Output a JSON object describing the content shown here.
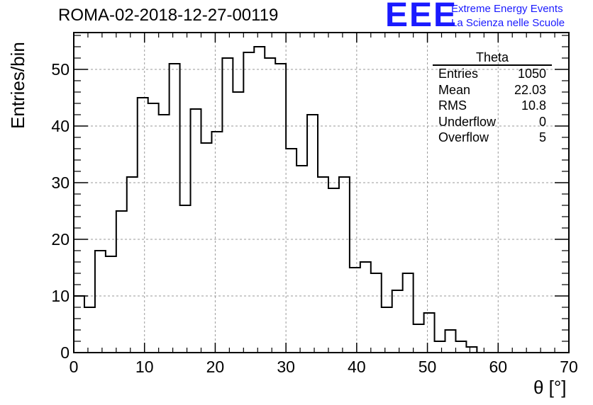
{
  "header": {
    "run_title": "ROMA-02-2018-12-27-00119",
    "logo_mark": "EEE",
    "logo_line1": "Extreme Energy Events",
    "logo_line2": "La Scienza nelle Scuole"
  },
  "stats_box": {
    "title": "Theta",
    "rows": [
      {
        "label": "Entries",
        "value": "1050"
      },
      {
        "label": "Mean",
        "value": "22.03"
      },
      {
        "label": "RMS",
        "value": "10.8"
      },
      {
        "label": "Underflow",
        "value": "0"
      },
      {
        "label": "Overflow",
        "value": "5"
      }
    ]
  },
  "colors": {
    "logo": "#1a1aff",
    "line": "#000000",
    "grid": "#9a9a9a"
  },
  "chart_data": {
    "type": "bar",
    "style": "step-histogram",
    "title": "ROMA-02-2018-12-27-00119",
    "xlabel": "θ [°]",
    "ylabel": "Entries/bin",
    "xlim": [
      0,
      70
    ],
    "ylim": [
      0,
      56.5
    ],
    "bin_width": 1.5,
    "x_ticks": [
      "0",
      "10",
      "20",
      "30",
      "40",
      "50",
      "60",
      "70"
    ],
    "y_ticks": [
      "0",
      "10",
      "20",
      "30",
      "40",
      "50"
    ],
    "grid": true,
    "bins": [
      {
        "x0": 0,
        "x1": 1.5,
        "count": 10
      },
      {
        "x0": 1.5,
        "x1": 3,
        "count": 8
      },
      {
        "x0": 3,
        "x1": 4.5,
        "count": 18
      },
      {
        "x0": 4.5,
        "x1": 6,
        "count": 17
      },
      {
        "x0": 6,
        "x1": 7.5,
        "count": 25
      },
      {
        "x0": 7.5,
        "x1": 9,
        "count": 31
      },
      {
        "x0": 9,
        "x1": 10.5,
        "count": 45
      },
      {
        "x0": 10.5,
        "x1": 12,
        "count": 44
      },
      {
        "x0": 12,
        "x1": 13.5,
        "count": 42
      },
      {
        "x0": 13.5,
        "x1": 15,
        "count": 51
      },
      {
        "x0": 15,
        "x1": 16.5,
        "count": 26
      },
      {
        "x0": 16.5,
        "x1": 18,
        "count": 43
      },
      {
        "x0": 18,
        "x1": 19.5,
        "count": 37
      },
      {
        "x0": 19.5,
        "x1": 21,
        "count": 39
      },
      {
        "x0": 21,
        "x1": 22.5,
        "count": 52
      },
      {
        "x0": 22.5,
        "x1": 24,
        "count": 46
      },
      {
        "x0": 24,
        "x1": 25.5,
        "count": 53
      },
      {
        "x0": 25.5,
        "x1": 27,
        "count": 54
      },
      {
        "x0": 27,
        "x1": 28.5,
        "count": 52
      },
      {
        "x0": 28.5,
        "x1": 30,
        "count": 51
      },
      {
        "x0": 30,
        "x1": 31.5,
        "count": 36
      },
      {
        "x0": 31.5,
        "x1": 33,
        "count": 33
      },
      {
        "x0": 33,
        "x1": 34.5,
        "count": 42
      },
      {
        "x0": 34.5,
        "x1": 36,
        "count": 31
      },
      {
        "x0": 36,
        "x1": 37.5,
        "count": 29
      },
      {
        "x0": 37.5,
        "x1": 39,
        "count": 31
      },
      {
        "x0": 39,
        "x1": 40.5,
        "count": 15
      },
      {
        "x0": 40.5,
        "x1": 42,
        "count": 16
      },
      {
        "x0": 42,
        "x1": 43.5,
        "count": 14
      },
      {
        "x0": 43.5,
        "x1": 45,
        "count": 8
      },
      {
        "x0": 45,
        "x1": 46.5,
        "count": 11
      },
      {
        "x0": 46.5,
        "x1": 48,
        "count": 14
      },
      {
        "x0": 48,
        "x1": 49.5,
        "count": 5
      },
      {
        "x0": 49.5,
        "x1": 51,
        "count": 7
      },
      {
        "x0": 51,
        "x1": 52.5,
        "count": 2
      },
      {
        "x0": 52.5,
        "x1": 54,
        "count": 4
      },
      {
        "x0": 54,
        "x1": 55.5,
        "count": 2
      },
      {
        "x0": 55.5,
        "x1": 57,
        "count": 1
      },
      {
        "x0": 57,
        "x1": 58.5,
        "count": 0
      }
    ]
  }
}
